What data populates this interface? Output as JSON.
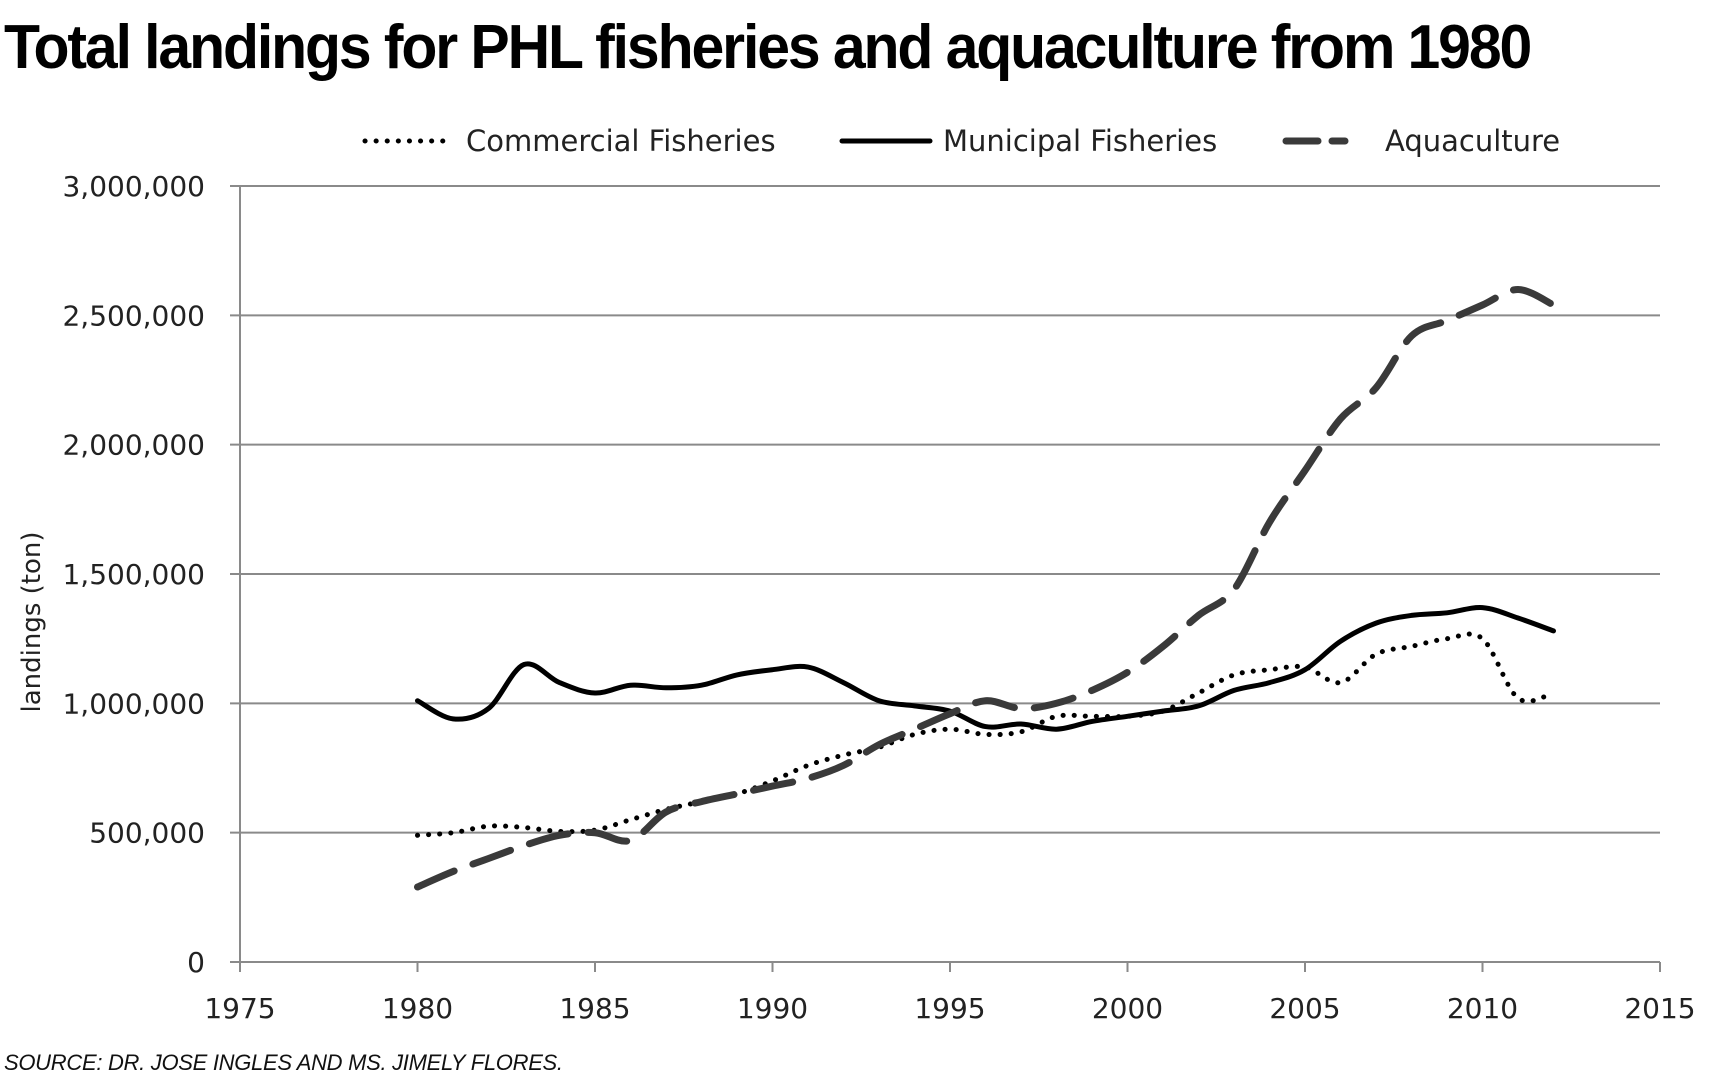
{
  "title": "Total landings for PHL fisheries and aquaculture from 1980",
  "source": "SOURCE: DR. JOSE INGLES AND MS. JIMELY FLORES.",
  "colors": {
    "background": "#ffffff",
    "grid": "#8a8a8a",
    "series_dark": "#000000",
    "series_aqua": "#3a3a3a"
  },
  "chart_data": {
    "type": "line",
    "title": "Total landings for PHL fisheries and aquaculture from 1980",
    "xlabel": "",
    "ylabel": "landings (ton)",
    "xlim": [
      1975,
      2015
    ],
    "ylim": [
      0,
      3000000
    ],
    "x_ticks": [
      "1975",
      "1980",
      "1985",
      "1990",
      "1995",
      "2000",
      "2005",
      "2010",
      "2015"
    ],
    "y_ticks": [
      "0",
      "500,000",
      "1,000,000",
      "1,500,000",
      "2,000,000",
      "2,500,000",
      "3,000,000"
    ],
    "grid": true,
    "legend_position": "top",
    "x": [
      1980,
      1981,
      1982,
      1983,
      1984,
      1985,
      1986,
      1987,
      1988,
      1989,
      1990,
      1991,
      1992,
      1993,
      1994,
      1995,
      1996,
      1997,
      1998,
      1999,
      2000,
      2001,
      2002,
      2003,
      2004,
      2005,
      2006,
      2007,
      2008,
      2009,
      2010,
      2011,
      2012
    ],
    "series": [
      {
        "name": "Commercial Fisheries",
        "style": "dotted",
        "values": [
          490000,
          500000,
          525000,
          520000,
          505000,
          510000,
          550000,
          590000,
          620000,
          650000,
          700000,
          760000,
          800000,
          830000,
          880000,
          900000,
          880000,
          890000,
          950000,
          950000,
          950000,
          970000,
          1040000,
          1110000,
          1130000,
          1140000,
          1080000,
          1190000,
          1220000,
          1250000,
          1250000,
          1020000,
          1040000
        ]
      },
      {
        "name": "Municipal Fisheries",
        "style": "solid",
        "values": [
          1010000,
          940000,
          980000,
          1150000,
          1080000,
          1040000,
          1070000,
          1060000,
          1070000,
          1110000,
          1130000,
          1140000,
          1080000,
          1010000,
          990000,
          970000,
          910000,
          920000,
          900000,
          930000,
          950000,
          970000,
          990000,
          1050000,
          1080000,
          1130000,
          1240000,
          1310000,
          1340000,
          1350000,
          1370000,
          1330000,
          1280000
        ]
      },
      {
        "name": "Aquaculture",
        "style": "dashed",
        "values": [
          290000,
          350000,
          400000,
          450000,
          490000,
          500000,
          470000,
          580000,
          620000,
          650000,
          680000,
          710000,
          760000,
          840000,
          900000,
          960000,
          1010000,
          980000,
          1000000,
          1050000,
          1120000,
          1220000,
          1340000,
          1440000,
          1700000,
          1900000,
          2100000,
          2220000,
          2420000,
          2480000,
          2540000,
          2600000,
          2540000
        ]
      }
    ]
  }
}
